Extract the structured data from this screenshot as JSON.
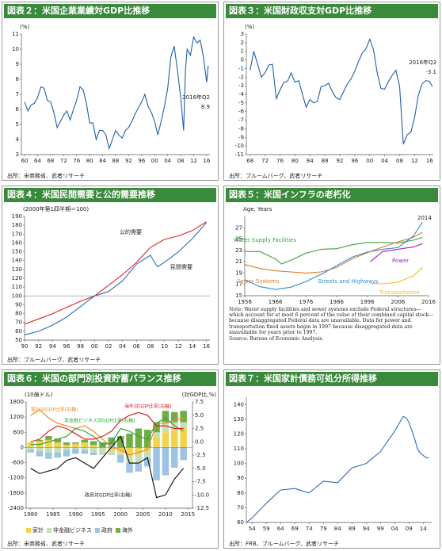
{
  "chart_data": [
    {
      "type": "line",
      "title": "図表２：米国企業業績対GDP比推移",
      "ylabel": "(%)",
      "source": "出所：米商務省、武者リサーチ",
      "annotations": [
        "2016年Q2",
        "8.9"
      ],
      "xlim": [
        1959,
        2017
      ],
      "ylim": [
        3,
        11
      ],
      "xticks": [
        {
          "value": 1960,
          "label": "60"
        },
        {
          "value": 1964,
          "label": "64"
        },
        {
          "value": 1968,
          "label": "68"
        },
        {
          "value": 1972,
          "label": "72"
        },
        {
          "value": 1976,
          "label": "76"
        },
        {
          "value": 1980,
          "label": "80"
        },
        {
          "value": 1984,
          "label": "84"
        },
        {
          "value": 1988,
          "label": "88"
        },
        {
          "value": 1992,
          "label": "92"
        },
        {
          "value": 1996,
          "label": "96"
        },
        {
          "value": 2000,
          "label": "00"
        },
        {
          "value": 2004,
          "label": "04"
        },
        {
          "value": 2008,
          "label": "08"
        },
        {
          "value": 2012,
          "label": "12"
        },
        {
          "value": 2016,
          "label": "16"
        }
      ],
      "yticks": [
        3,
        4,
        5,
        6,
        7,
        8,
        9,
        10,
        11
      ],
      "x": [
        1960,
        1961,
        1962,
        1963,
        1964,
        1965,
        1966,
        1967,
        1968,
        1969,
        1970,
        1971,
        1972,
        1973,
        1974,
        1975,
        1976,
        1977,
        1978,
        1979,
        1980,
        1981,
        1982,
        1983,
        1984,
        1985,
        1986,
        1987,
        1988,
        1989,
        1990,
        1991,
        1992,
        1993,
        1994,
        1995,
        1996,
        1997,
        1998,
        1999,
        2000,
        2001,
        2002,
        2003,
        2004,
        2005,
        2006,
        2007,
        2008,
        2008.9,
        2009.5,
        2010,
        2011,
        2012,
        2013,
        2014,
        2015,
        2016,
        2016.5
      ],
      "series": [
        {
          "color": "#1f5fa8",
          "values": [
            6.5,
            5.9,
            6.3,
            6.4,
            6.8,
            7.5,
            7.4,
            6.6,
            6.5,
            5.8,
            4.8,
            5.2,
            5.6,
            5.9,
            5.3,
            6.0,
            6.6,
            7.5,
            7.3,
            6.4,
            5.1,
            5.1,
            4.0,
            4.6,
            4.6,
            4.3,
            3.4,
            4.0,
            4.6,
            4.3,
            4.1,
            4.6,
            4.8,
            5.2,
            5.7,
            6.1,
            6.5,
            7.0,
            6.2,
            5.8,
            5.2,
            4.3,
            5.2,
            6.2,
            7.4,
            9.5,
            10.2,
            8.6,
            6.8,
            4.6,
            8.7,
            10.0,
            9.6,
            10.8,
            10.4,
            10.6,
            9.5,
            7.8,
            8.9
          ]
        }
      ]
    },
    {
      "type": "line",
      "title": "図表３：米国財政収支対GDP比推移",
      "ylabel": "(%)",
      "source": "出所：ブルームバーグ、武者リサーチ",
      "annotations": [
        "2016年Q3",
        "-3.1"
      ],
      "xlim": [
        1967,
        2017
      ],
      "ylim": [
        -11,
        3
      ],
      "xticks": [
        {
          "value": 1968,
          "label": "68"
        },
        {
          "value": 1972,
          "label": "72"
        },
        {
          "value": 1976,
          "label": "76"
        },
        {
          "value": 1980,
          "label": "80"
        },
        {
          "value": 1984,
          "label": "84"
        },
        {
          "value": 1988,
          "label": "88"
        },
        {
          "value": 1992,
          "label": "92"
        },
        {
          "value": 1996,
          "label": "96"
        },
        {
          "value": 2000,
          "label": "00"
        },
        {
          "value": 2004,
          "label": "04"
        },
        {
          "value": 2008,
          "label": "08"
        },
        {
          "value": 2012,
          "label": "12"
        },
        {
          "value": 2016,
          "label": "16"
        }
      ],
      "yticks": [
        -11,
        -10,
        -9,
        -8,
        -7,
        -6,
        -5,
        -4,
        -3,
        -2,
        -1,
        0,
        1,
        2,
        3
      ],
      "x": [
        1968,
        1969,
        1970,
        1971,
        1972,
        1973,
        1974,
        1975,
        1976,
        1977,
        1978,
        1979,
        1980,
        1981,
        1982,
        1983,
        1984,
        1985,
        1986,
        1987,
        1988,
        1989,
        1990,
        1991,
        1992,
        1993,
        1994,
        1995,
        1996,
        1997,
        1998,
        1999,
        2000,
        2001,
        2002,
        2003,
        2004,
        2005,
        2006,
        2007,
        2008,
        2009,
        2010,
        2011,
        2012,
        2013,
        2014,
        2015,
        2016,
        2016.75
      ],
      "series": [
        {
          "color": "#1f5fa8",
          "values": [
            -1.2,
            1.0,
            -0.5,
            -2.0,
            -1.5,
            -0.6,
            -0.5,
            -4.5,
            -3.5,
            -2.6,
            -2.5,
            -1.5,
            -2.6,
            -2.4,
            -4.0,
            -5.5,
            -4.6,
            -5.0,
            -4.8,
            -3.1,
            -3.0,
            -2.7,
            -3.7,
            -4.4,
            -4.6,
            -3.7,
            -2.8,
            -2.2,
            -1.3,
            -0.2,
            0.8,
            1.3,
            2.4,
            1.2,
            -1.5,
            -3.3,
            -3.4,
            -2.5,
            -1.8,
            -1.2,
            -3.1,
            -9.8,
            -8.7,
            -8.4,
            -6.7,
            -4.1,
            -2.8,
            -2.4,
            -2.5,
            -3.1
          ]
        }
      ]
    },
    {
      "type": "line",
      "title": "図表４：米国民間需要と公的需要推移",
      "ylabel": "(2000年第1四半期＝100)",
      "source": "出所：ブルームバーグ、武者リサーチ",
      "xlim": [
        1990,
        2016.5
      ],
      "ylim": [
        50,
        190
      ],
      "hline": 100,
      "xticks": [
        {
          "value": 1990,
          "label": "90"
        },
        {
          "value": 1992,
          "label": "92"
        },
        {
          "value": 1994,
          "label": "94"
        },
        {
          "value": 1996,
          "label": "96"
        },
        {
          "value": 1998,
          "label": "98"
        },
        {
          "value": 2000,
          "label": "00"
        },
        {
          "value": 2002,
          "label": "02"
        },
        {
          "value": 2004,
          "label": "04"
        },
        {
          "value": 2006,
          "label": "06"
        },
        {
          "value": 2008,
          "label": "08"
        },
        {
          "value": 2010,
          "label": "10"
        },
        {
          "value": 2012,
          "label": "12"
        },
        {
          "value": 2014,
          "label": "14"
        },
        {
          "value": 2016,
          "label": "16"
        }
      ],
      "yticks": [
        50,
        60,
        70,
        80,
        90,
        100,
        110,
        120,
        130,
        140,
        150,
        160,
        170,
        180,
        190
      ],
      "series": [
        {
          "name": "公的需要",
          "color": "#e0202a",
          "x": [
            1990,
            1992,
            1994,
            1996,
            1998,
            2000,
            2002,
            2004,
            2006,
            2008,
            2010,
            2012,
            2014,
            2016
          ],
          "values": [
            68,
            74,
            80,
            87,
            94,
            100,
            112,
            124,
            138,
            155,
            164,
            168,
            174,
            184
          ]
        },
        {
          "name": "民間需要",
          "color": "#2a6ebb",
          "x": [
            1990,
            1992,
            1994,
            1996,
            1998,
            2000,
            2002,
            2004,
            2006,
            2008,
            2009,
            2010,
            2012,
            2014,
            2016
          ],
          "values": [
            56,
            60,
            67,
            76,
            88,
            100,
            105,
            117,
            136,
            146,
            133,
            138,
            150,
            165,
            183
          ]
        }
      ]
    },
    {
      "type": "line",
      "title": "図表５：米国インフラの老朽化",
      "ylabel": "Age, Years",
      "annotations": [
        "2014"
      ],
      "note": "Note: Water supply facilities and sewer systems exclude Federal structures—which account for at most 6 percent of the value of their combined capital stock—because disaggregated Federal data are unavailable. Data for power and transportation fixed assets begin in 1997 because disaggregated data are unavailable for years prior to 1997.",
      "source": "Source: Bureau of Economic Analysis.",
      "xlim": [
        1956,
        2016
      ],
      "ylim": [
        15,
        29
      ],
      "xticks": [
        1956,
        1966,
        1976,
        1986,
        1996,
        2006,
        2016
      ],
      "yticks": [
        15,
        17,
        19,
        21,
        23,
        25,
        27
      ],
      "series": [
        {
          "name": "Water Supply Facilities",
          "color": "#3aa335",
          "x": [
            1956,
            1961,
            1966,
            1968,
            1972,
            1976,
            1981,
            1986,
            1991,
            1996,
            2001,
            2006,
            2011,
            2014
          ],
          "values": [
            22.8,
            22.8,
            21.5,
            20.6,
            21.5,
            22.5,
            23.2,
            23.3,
            24.0,
            24.4,
            24.4,
            24.3,
            24.8,
            25.3
          ]
        },
        {
          "name": "Sewer Systems",
          "color": "#e07b2a",
          "x": [
            1956,
            1961,
            1966,
            1971,
            1976,
            1981,
            1986,
            1991,
            1996,
            2001,
            2006,
            2011,
            2014
          ],
          "values": [
            20.5,
            19.8,
            19.4,
            19.2,
            19.0,
            19.2,
            20.0,
            21.5,
            22.6,
            23.6,
            24.5,
            25.3,
            26.2
          ]
        },
        {
          "name": "Streets and Highways",
          "color": "#2a8fd0",
          "x": [
            1956,
            1961,
            1966,
            1971,
            1976,
            1981,
            1986,
            1991,
            1996,
            2001,
            2006,
            2011,
            2014
          ],
          "values": [
            17.8,
            16.6,
            16.1,
            16.5,
            17.5,
            18.8,
            20.3,
            21.8,
            22.7,
            23.2,
            23.5,
            25.5,
            28.0
          ]
        },
        {
          "name": "Power",
          "color": "#a020c0",
          "x": [
            1997,
            2001,
            2006,
            2011,
            2014
          ],
          "values": [
            21.0,
            22.8,
            23.2,
            23.6,
            24.2
          ]
        },
        {
          "name": "Transportation",
          "color": "#f0c020",
          "x": [
            1997,
            2001,
            2006,
            2011,
            2014
          ],
          "values": [
            17.2,
            17.1,
            17.4,
            18.5,
            20.0
          ]
        }
      ]
    },
    {
      "type": "combo",
      "title": "図表６：米国の部門別投資貯蓄バランス推移",
      "ylabel": "(10億ドル)",
      "y2label": "(対GDP比,%)",
      "source": "出所：米商務省、武者リサーチ",
      "xlim": [
        1979,
        2016
      ],
      "ylim": [
        -2400,
        1800
      ],
      "y2lim": [
        -12.5,
        7.5
      ],
      "xticks": [
        1980,
        1985,
        1990,
        1995,
        2000,
        2005,
        2010,
        2015
      ],
      "yticks": [
        -2400,
        -1800,
        -1200,
        -600,
        0,
        600,
        1200,
        1800
      ],
      "y2ticks": [
        -12.5,
        {
          "value": -10,
          "label": "-10.0"
        },
        -7.5,
        {
          "value": -5,
          "label": "-5.0"
        },
        -2.5,
        {
          "value": 0,
          "label": "0.0"
        },
        2.5,
        {
          "value": 5,
          "label": "5.0"
        },
        7.5
      ],
      "x": [
        1980,
        1982,
        1984,
        1986,
        1988,
        1990,
        1992,
        1994,
        1996,
        1998,
        2000,
        2002,
        2004,
        2006,
        2008,
        2010,
        2012,
        2014
      ],
      "bars": [
        {
          "name": "家計",
          "color": "#f3d34a",
          "values": [
            200,
            250,
            300,
            200,
            100,
            150,
            200,
            100,
            0,
            -100,
            -200,
            -300,
            -250,
            -100,
            400,
            600,
            700,
            800
          ]
        },
        {
          "name": "非金融ビジネス",
          "color": "#c5e0b4",
          "values": [
            -100,
            -150,
            -200,
            -200,
            -100,
            -50,
            -100,
            -200,
            -300,
            -200,
            -100,
            -300,
            -400,
            -300,
            200,
            400,
            300,
            200
          ]
        },
        {
          "name": "政府",
          "color": "#9dc3e6",
          "values": [
            -100,
            -200,
            -250,
            -200,
            -250,
            -200,
            -150,
            -100,
            0,
            100,
            -300,
            -400,
            -300,
            -350,
            -1300,
            -1100,
            -800,
            -500
          ]
        },
        {
          "name": "海外",
          "color": "#70ad47",
          "values": [
            0,
            50,
            150,
            150,
            100,
            50,
            100,
            150,
            200,
            300,
            450,
            550,
            750,
            700,
            400,
            450,
            400,
            450
          ]
        }
      ],
      "series": [
        {
          "name": "家計対GDP比率(右軸)",
          "color": "#f08a1c",
          "axis": "y2",
          "values": [
            5.0,
            6.0,
            4.5,
            3.5,
            3.0,
            2.5,
            3.0,
            2.0,
            0.5,
            -1.0,
            -1.5,
            -2.5,
            -2.0,
            -1.5,
            3.5,
            3.5,
            4.0,
            4.5
          ]
        },
        {
          "name": "非金融ビジネス対GDP比率(右軸)",
          "color": "#2ea83a",
          "axis": "y2",
          "values": [
            -0.5,
            -0.5,
            0,
            0.5,
            1,
            2.5,
            2,
            1,
            -0.5,
            -0.2,
            2.5,
            2,
            1,
            0.5,
            3.5,
            4.5,
            3,
            2
          ]
        },
        {
          "name": "海外対GDP比率(右軸)",
          "color": "#e0202a",
          "axis": "y2",
          "values": [
            0,
            0.5,
            2,
            3,
            2.5,
            1.5,
            0.5,
            0.5,
            1,
            2,
            4,
            5,
            5.5,
            5,
            3,
            3,
            2.5,
            2.5
          ]
        },
        {
          "name": "政府対GDP比率(右軸)",
          "color": "#1a1a1a",
          "axis": "y2",
          "values": [
            -5,
            -6,
            -5.5,
            -5,
            -3.5,
            -3,
            -4,
            -5,
            -3,
            -1,
            1,
            -4,
            -4,
            -3,
            -10.5,
            -10,
            -7,
            -5
          ]
        }
      ]
    },
    {
      "type": "line",
      "title": "図表７：米国家計債務可処分所得推移",
      "source": "出所：FRB、ブルームバーグ、武者リサーチ",
      "xlim": [
        1952,
        2017
      ],
      "ylim": [
        60,
        145
      ],
      "xticks": [
        {
          "value": 1954,
          "label": "54"
        },
        {
          "value": 1959,
          "label": "59"
        },
        {
          "value": 1964,
          "label": "64"
        },
        {
          "value": 1969,
          "label": "69"
        },
        {
          "value": 1974,
          "label": "74"
        },
        {
          "value": 1979,
          "label": "79"
        },
        {
          "value": 1984,
          "label": "84"
        },
        {
          "value": 1989,
          "label": "89"
        },
        {
          "value": 1994,
          "label": "94"
        },
        {
          "value": 1999,
          "label": "99"
        },
        {
          "value": 2004,
          "label": "04"
        },
        {
          "value": 2009,
          "label": "09"
        },
        {
          "value": 2014,
          "label": "14"
        }
      ],
      "yticks": [
        60,
        70,
        80,
        90,
        100,
        110,
        120,
        130,
        140
      ],
      "x": [
        1952,
        1954,
        1959,
        1964,
        1969,
        1974,
        1979,
        1984,
        1989,
        1994,
        1999,
        2004,
        2007,
        2008,
        2009,
        2011,
        2012,
        2013,
        2015,
        2016
      ],
      "series": [
        {
          "color": "#2a6ebb",
          "values": [
            60,
            63,
            73,
            82,
            83,
            80,
            88,
            87,
            97,
            100,
            108,
            122,
            132,
            131,
            128,
            117,
            110,
            107,
            104,
            104
          ]
        }
      ]
    }
  ]
}
